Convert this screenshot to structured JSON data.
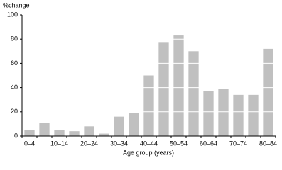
{
  "chart_data": {
    "type": "bar",
    "y_axis_label": "%change",
    "x_axis_label": "Age group (years)",
    "categories": [
      "0–4",
      null,
      "10–14",
      null,
      "20–24",
      null,
      "30–34",
      null,
      "40–44",
      null,
      "50–54",
      null,
      "60–64",
      null,
      "70–74",
      null,
      "80–84"
    ],
    "values": [
      5,
      11,
      5,
      4,
      8,
      2,
      16,
      19,
      50,
      77,
      83,
      70,
      37,
      39,
      34,
      34,
      72
    ],
    "color": "#c0c0c0",
    "ylim": [
      0,
      100
    ],
    "yticks": [
      0,
      20,
      40,
      60,
      80,
      100
    ],
    "grid": true,
    "grid_color": "#ffffff"
  }
}
